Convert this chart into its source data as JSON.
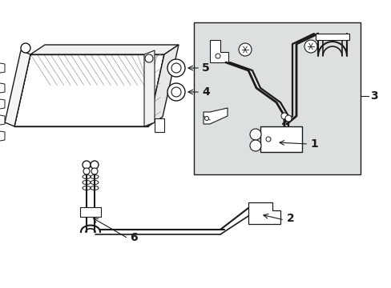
{
  "bg_color": "#ffffff",
  "line_color": "#1a1a1a",
  "box_fill": "#dde0e0",
  "figsize": [
    4.89,
    3.6
  ],
  "dpi": 100
}
